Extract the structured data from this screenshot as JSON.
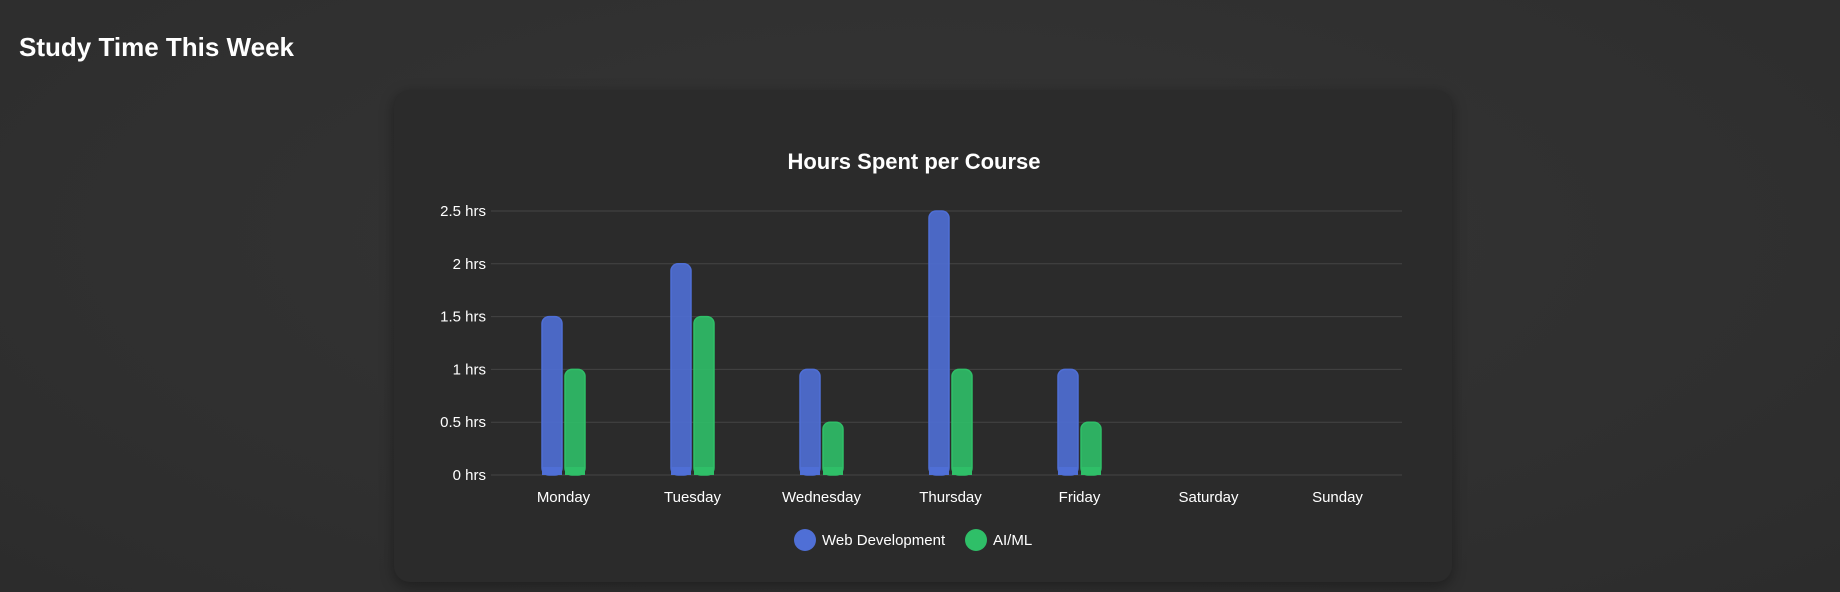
{
  "page": {
    "section_title": "Study Time This Week"
  },
  "chart_data": {
    "type": "bar",
    "title": "Hours Spent per Course",
    "categories": [
      "Monday",
      "Tuesday",
      "Wednesday",
      "Thursday",
      "Friday",
      "Saturday",
      "Sunday"
    ],
    "series": [
      {
        "name": "Web Development",
        "values": [
          1.5,
          2,
          1,
          2.5,
          1,
          0,
          0
        ],
        "color": "#4f6fd6"
      },
      {
        "name": "AI/ML",
        "values": [
          1,
          1.5,
          0.5,
          1,
          0.5,
          0,
          0
        ],
        "color": "#2fbf68"
      }
    ],
    "y_ticks": [
      {
        "value": 0,
        "label": "0 hrs"
      },
      {
        "value": 0.5,
        "label": "0.5 hrs"
      },
      {
        "value": 1,
        "label": "1 hrs"
      },
      {
        "value": 1.5,
        "label": "1.5 hrs"
      },
      {
        "value": 2,
        "label": "2 hrs"
      },
      {
        "value": 2.5,
        "label": "2.5 hrs"
      }
    ],
    "ylim": [
      0,
      2.5
    ],
    "grid": true,
    "legend_position": "bottom",
    "colors": {
      "background": "#2b2b2b",
      "grid": "#444444",
      "text": "#ffffff"
    }
  }
}
